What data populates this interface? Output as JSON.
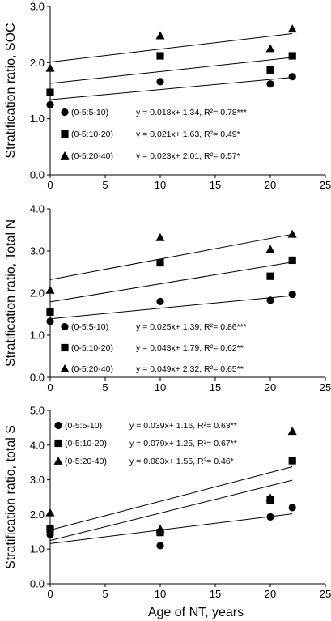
{
  "chart_data": [
    {
      "type": "scatter",
      "ylabel": "Stratification ratio, SOC",
      "xlabel": "",
      "xlim": [
        0,
        25
      ],
      "ylim": [
        0,
        3
      ],
      "xticks": [
        "0",
        "5",
        "10",
        "15",
        "20",
        "25"
      ],
      "yticks": [
        "0.0",
        "1.0",
        "2.0",
        "3.0"
      ],
      "legend_position": "bottom-left",
      "series": [
        {
          "name": "(0-5:5-10)",
          "marker": "circle",
          "x": [
            0,
            10,
            20,
            22
          ],
          "y": [
            1.25,
            1.66,
            1.62,
            1.75
          ],
          "slope": 0.018,
          "intercept": 1.34,
          "equation": "y = 0.018x+ 1.34, R²= 0.78***"
        },
        {
          "name": "(0-5:10-20)",
          "marker": "square",
          "x": [
            0,
            10,
            20,
            22
          ],
          "y": [
            1.47,
            2.12,
            1.87,
            2.12
          ],
          "slope": 0.021,
          "intercept": 1.63,
          "equation": "y = 0.021x+ 1.63, R²= 0.49*"
        },
        {
          "name": "(0-5:20-40)",
          "marker": "triangle",
          "x": [
            0,
            10,
            20,
            22
          ],
          "y": [
            1.9,
            2.48,
            2.25,
            2.6
          ],
          "slope": 0.023,
          "intercept": 2.01,
          "equation": "y = 0.023x+ 2.01, R²= 0.57*"
        }
      ]
    },
    {
      "type": "scatter",
      "ylabel": "Stratification ratio,  Total N",
      "xlabel": "",
      "xlim": [
        0,
        25
      ],
      "ylim": [
        0,
        4
      ],
      "xticks": [
        "0",
        "5",
        "10",
        "15",
        "20",
        "25"
      ],
      "yticks": [
        "0.0",
        "1.0",
        "2.0",
        "3.0",
        "4.0"
      ],
      "legend_position": "bottom-left",
      "series": [
        {
          "name": "(0-5:5-10)",
          "marker": "circle",
          "x": [
            0,
            10,
            20,
            22
          ],
          "y": [
            1.33,
            1.8,
            1.83,
            1.97
          ],
          "slope": 0.025,
          "intercept": 1.39,
          "equation": "y = 0.025x+ 1.39, R²= 0.86***"
        },
        {
          "name": "(0-5:10-20)",
          "marker": "square",
          "x": [
            0,
            10,
            20,
            22
          ],
          "y": [
            1.55,
            2.72,
            2.4,
            2.78
          ],
          "slope": 0.043,
          "intercept": 1.79,
          "equation": "y = 0.043x+ 1.79, R²= 0.62**"
        },
        {
          "name": "(0-5:20-40)",
          "marker": "triangle",
          "x": [
            0,
            10,
            20,
            22
          ],
          "y": [
            2.07,
            3.32,
            3.04,
            3.4
          ],
          "slope": 0.049,
          "intercept": 2.32,
          "equation": "y = 0.049x+ 2.32, R²= 0.65**"
        }
      ]
    },
    {
      "type": "scatter",
      "ylabel": "Stratification ratio, total S",
      "xlabel": "Age of NT, years",
      "xlim": [
        0,
        25
      ],
      "ylim": [
        0,
        5
      ],
      "xticks": [
        "0",
        "5",
        "10",
        "15",
        "20",
        "25"
      ],
      "yticks": [
        "0.0",
        "1.0",
        "2.0",
        "3.0",
        "4.0",
        "5.0"
      ],
      "legend_position": "top-left",
      "series": [
        {
          "name": "(0-5:5-10)",
          "marker": "circle",
          "x": [
            0,
            10,
            20,
            22
          ],
          "y": [
            1.42,
            1.1,
            1.93,
            2.2
          ],
          "slope": 0.039,
          "intercept": 1.16,
          "equation": "y = 0.039x+ 1.16, R²= 0.63**"
        },
        {
          "name": "(0-5:10-20)",
          "marker": "square",
          "x": [
            0,
            10,
            20,
            22
          ],
          "y": [
            1.58,
            1.48,
            2.42,
            3.55
          ],
          "slope": 0.079,
          "intercept": 1.25,
          "equation": "y = 0.079x+ 1.25, R²= 0.67**"
        },
        {
          "name": "(0-5:20-40)",
          "marker": "triangle",
          "x": [
            0,
            10,
            20,
            22
          ],
          "y": [
            2.05,
            1.58,
            2.48,
            4.4
          ],
          "slope": 0.083,
          "intercept": 1.55,
          "equation": "y = 0.083x+ 1.55, R²= 0.46*"
        }
      ]
    }
  ]
}
